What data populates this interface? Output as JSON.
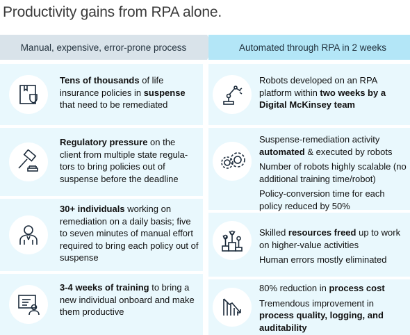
{
  "title": "Productivity gains from RPA alone.",
  "headers": {
    "left": "Manual, expensive, error-prone process",
    "right": "Automated through RPA in 2 weeks"
  },
  "left_rows": [
    {
      "icon": "box-document-icon",
      "segments": [
        {
          "text": "Tens of thousands",
          "bold": true
        },
        {
          "text": " of life insurance policies in ",
          "bold": false
        },
        {
          "text": "suspense",
          "bold": true
        },
        {
          "text": " that need to be remediated",
          "bold": false
        }
      ]
    },
    {
      "icon": "gavel-icon",
      "segments": [
        {
          "text": "Regulatory pressure",
          "bold": true
        },
        {
          "text": " on the client from multiple state regula-tors to bring policies out of suspense before the deadline",
          "bold": false
        }
      ]
    },
    {
      "icon": "person-icon",
      "segments": [
        {
          "text": "30+ individuals",
          "bold": true
        },
        {
          "text": " working on remediation on a daily basis; five to seven minutes of manual effort required to bring each policy out of suspense",
          "bold": false
        }
      ]
    },
    {
      "icon": "training-presentation-icon",
      "segments": [
        {
          "text": "3-4 weeks of training",
          "bold": true
        },
        {
          "text": " to bring a new individual onboard and make them productive",
          "bold": false
        }
      ]
    }
  ],
  "right_rows": [
    {
      "icon": "robot-arm-icon",
      "paragraphs": [
        [
          {
            "text": "Robots developed on an RPA platform within ",
            "bold": false
          },
          {
            "text": "two weeks by a Digital McKinsey team",
            "bold": true
          }
        ]
      ]
    },
    {
      "icon": "gears-icon",
      "paragraphs": [
        [
          {
            "text": "Suspense-remediation activity ",
            "bold": false
          },
          {
            "text": "automated",
            "bold": true
          },
          {
            "text": " & executed by robots",
            "bold": false
          }
        ],
        [
          {
            "text": "Number of robots highly scalable (no additional training time/robot)",
            "bold": false
          }
        ],
        [
          {
            "text": "Policy-conversion time for each policy reduced by 50%",
            "bold": false
          }
        ]
      ]
    },
    {
      "icon": "podium-people-icon",
      "paragraphs": [
        [
          {
            "text": "Skilled ",
            "bold": false
          },
          {
            "text": "resources freed",
            "bold": true
          },
          {
            "text": " up to work on higher-value activities",
            "bold": false
          }
        ],
        [
          {
            "text": "Human errors mostly eliminated",
            "bold": false
          }
        ]
      ]
    },
    {
      "icon": "declining-chart-icon",
      "paragraphs": [
        [
          {
            "text": "80% reduction in ",
            "bold": false
          },
          {
            "text": "process cost",
            "bold": true
          }
        ],
        [
          {
            "text": "Tremendous improvement in ",
            "bold": false
          },
          {
            "text": "process quality, logging, and auditability",
            "bold": true
          }
        ]
      ]
    }
  ],
  "colors": {
    "header_left_bg": "#d9e3ea",
    "header_right_bg": "#b3e6f7",
    "cell_bg": "#e9f8fd",
    "icon_stroke": "#1b2a3a"
  }
}
